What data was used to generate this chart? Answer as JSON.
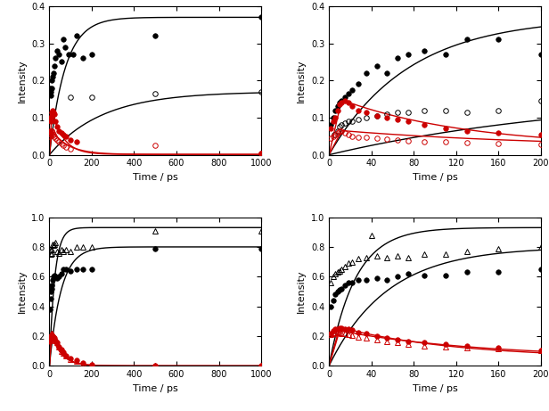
{
  "panels": [
    {
      "label": "top_left",
      "xlim": [
        0,
        1000
      ],
      "ylim": [
        0,
        0.4
      ],
      "xticks": [
        0,
        200,
        400,
        600,
        800,
        1000
      ],
      "yticks": [
        0.0,
        0.1,
        0.2,
        0.3,
        0.4
      ],
      "xlabel": "Time / ps",
      "ylabel": "Intensity",
      "black_filled_data": [
        [
          2,
          0.18
        ],
        [
          5,
          0.16
        ],
        [
          8,
          0.17
        ],
        [
          10,
          0.18
        ],
        [
          12,
          0.2
        ],
        [
          15,
          0.21
        ],
        [
          18,
          0.22
        ],
        [
          22,
          0.24
        ],
        [
          28,
          0.26
        ],
        [
          35,
          0.28
        ],
        [
          45,
          0.27
        ],
        [
          55,
          0.25
        ],
        [
          65,
          0.31
        ],
        [
          75,
          0.29
        ],
        [
          90,
          0.27
        ],
        [
          110,
          0.27
        ],
        [
          130,
          0.32
        ],
        [
          160,
          0.26
        ],
        [
          200,
          0.27
        ],
        [
          500,
          0.32
        ],
        [
          1000,
          0.37
        ]
      ],
      "black_open_data": [
        [
          100,
          0.155
        ],
        [
          200,
          0.155
        ],
        [
          500,
          0.165
        ],
        [
          1000,
          0.17
        ]
      ],
      "red_filled_data": [
        [
          2,
          0.065
        ],
        [
          5,
          0.09
        ],
        [
          8,
          0.1
        ],
        [
          10,
          0.105
        ],
        [
          12,
          0.115
        ],
        [
          15,
          0.12
        ],
        [
          18,
          0.115
        ],
        [
          22,
          0.11
        ],
        [
          28,
          0.09
        ],
        [
          35,
          0.075
        ],
        [
          45,
          0.065
        ],
        [
          55,
          0.06
        ],
        [
          65,
          0.055
        ],
        [
          80,
          0.05
        ],
        [
          100,
          0.04
        ],
        [
          130,
          0.035
        ],
        [
          1000,
          0.005
        ]
      ],
      "red_open_data": [
        [
          2,
          0.05
        ],
        [
          5,
          0.055
        ],
        [
          8,
          0.06
        ],
        [
          10,
          0.065
        ],
        [
          12,
          0.065
        ],
        [
          15,
          0.06
        ],
        [
          18,
          0.055
        ],
        [
          22,
          0.05
        ],
        [
          28,
          0.045
        ],
        [
          35,
          0.04
        ],
        [
          45,
          0.035
        ],
        [
          55,
          0.03
        ],
        [
          65,
          0.025
        ],
        [
          80,
          0.02
        ],
        [
          100,
          0.015
        ],
        [
          500,
          0.025
        ],
        [
          1000,
          0.005
        ]
      ],
      "bf_fit": {
        "a": 0.37,
        "tau": 75
      },
      "bo_fit": {
        "a": 0.17,
        "tau": 250
      },
      "rf_fit": {
        "peak": 0.12,
        "t_peak": 12,
        "tau_decay": 55,
        "c": 0.001
      },
      "ro_fit": {
        "peak": 0.065,
        "t_peak": 12,
        "tau_decay": 80,
        "c": 0.001
      }
    },
    {
      "label": "top_right",
      "xlim": [
        0,
        200
      ],
      "ylim": [
        0,
        0.4
      ],
      "xticks": [
        0,
        40,
        80,
        120,
        160,
        200
      ],
      "yticks": [
        0.0,
        0.1,
        0.2,
        0.3,
        0.4
      ],
      "xlabel": "Time / ps",
      "ylabel": "Intensity",
      "black_filled_data": [
        [
          2,
          0.08
        ],
        [
          4,
          0.1
        ],
        [
          6,
          0.12
        ],
        [
          8,
          0.13
        ],
        [
          10,
          0.14
        ],
        [
          12,
          0.145
        ],
        [
          15,
          0.155
        ],
        [
          18,
          0.165
        ],
        [
          22,
          0.175
        ],
        [
          28,
          0.19
        ],
        [
          35,
          0.22
        ],
        [
          45,
          0.24
        ],
        [
          55,
          0.22
        ],
        [
          65,
          0.26
        ],
        [
          75,
          0.27
        ],
        [
          90,
          0.28
        ],
        [
          110,
          0.27
        ],
        [
          130,
          0.31
        ],
        [
          160,
          0.31
        ],
        [
          200,
          0.27
        ]
      ],
      "black_open_data": [
        [
          5,
          0.055
        ],
        [
          8,
          0.065
        ],
        [
          10,
          0.075
        ],
        [
          12,
          0.08
        ],
        [
          15,
          0.085
        ],
        [
          18,
          0.09
        ],
        [
          22,
          0.09
        ],
        [
          28,
          0.095
        ],
        [
          35,
          0.1
        ],
        [
          45,
          0.105
        ],
        [
          55,
          0.11
        ],
        [
          65,
          0.115
        ],
        [
          75,
          0.115
        ],
        [
          90,
          0.12
        ],
        [
          110,
          0.12
        ],
        [
          130,
          0.115
        ],
        [
          160,
          0.12
        ],
        [
          200,
          0.145
        ]
      ],
      "red_filled_data": [
        [
          2,
          0.07
        ],
        [
          4,
          0.09
        ],
        [
          6,
          0.1
        ],
        [
          8,
          0.12
        ],
        [
          10,
          0.135
        ],
        [
          12,
          0.14
        ],
        [
          15,
          0.145
        ],
        [
          18,
          0.14
        ],
        [
          22,
          0.13
        ],
        [
          28,
          0.12
        ],
        [
          35,
          0.115
        ],
        [
          45,
          0.105
        ],
        [
          55,
          0.1
        ],
        [
          65,
          0.095
        ],
        [
          75,
          0.09
        ],
        [
          90,
          0.08
        ],
        [
          110,
          0.07
        ],
        [
          130,
          0.065
        ],
        [
          160,
          0.06
        ],
        [
          200,
          0.055
        ]
      ],
      "red_open_data": [
        [
          2,
          0.045
        ],
        [
          4,
          0.05
        ],
        [
          6,
          0.055
        ],
        [
          8,
          0.06
        ],
        [
          10,
          0.065
        ],
        [
          12,
          0.065
        ],
        [
          15,
          0.06
        ],
        [
          18,
          0.055
        ],
        [
          22,
          0.05
        ],
        [
          28,
          0.048
        ],
        [
          35,
          0.046
        ],
        [
          45,
          0.044
        ],
        [
          55,
          0.042
        ],
        [
          65,
          0.04
        ],
        [
          75,
          0.038
        ],
        [
          90,
          0.036
        ],
        [
          110,
          0.034
        ],
        [
          130,
          0.032
        ],
        [
          160,
          0.03
        ],
        [
          200,
          0.028
        ]
      ],
      "bf_fit": {
        "a": 0.37,
        "tau": 75
      },
      "bo_fit": {
        "a": 0.17,
        "tau": 250
      },
      "rf_fit": {
        "peak": 0.148,
        "t_peak": 12,
        "tau_decay": 120,
        "c": 0.02
      },
      "ro_fit": {
        "peak": 0.065,
        "t_peak": 12,
        "tau_decay": 200,
        "c": 0.018
      }
    },
    {
      "label": "bottom_left",
      "xlim": [
        0,
        1000
      ],
      "ylim": [
        0,
        1.0
      ],
      "xticks": [
        0,
        200,
        400,
        600,
        800,
        1000
      ],
      "yticks": [
        0.0,
        0.2,
        0.4,
        0.6,
        0.8,
        1.0
      ],
      "xlabel": "Time / ps",
      "ylabel": "Intensity",
      "black_tri_data": [
        [
          5,
          0.75
        ],
        [
          8,
          0.78
        ],
        [
          10,
          0.76
        ],
        [
          12,
          0.78
        ],
        [
          15,
          0.82
        ],
        [
          18,
          0.81
        ],
        [
          22,
          0.82
        ],
        [
          28,
          0.83
        ],
        [
          35,
          0.77
        ],
        [
          45,
          0.76
        ],
        [
          55,
          0.78
        ],
        [
          65,
          0.77
        ],
        [
          80,
          0.78
        ],
        [
          100,
          0.77
        ],
        [
          130,
          0.8
        ],
        [
          160,
          0.8
        ],
        [
          200,
          0.8
        ],
        [
          500,
          0.91
        ],
        [
          1000,
          0.91
        ]
      ],
      "black_filled_data": [
        [
          2,
          0.38
        ],
        [
          5,
          0.45
        ],
        [
          8,
          0.5
        ],
        [
          10,
          0.52
        ],
        [
          12,
          0.54
        ],
        [
          15,
          0.58
        ],
        [
          18,
          0.6
        ],
        [
          22,
          0.61
        ],
        [
          28,
          0.6
        ],
        [
          35,
          0.59
        ],
        [
          45,
          0.6
        ],
        [
          55,
          0.62
        ],
        [
          65,
          0.65
        ],
        [
          80,
          0.65
        ],
        [
          100,
          0.64
        ],
        [
          130,
          0.65
        ],
        [
          160,
          0.65
        ],
        [
          200,
          0.65
        ],
        [
          500,
          0.79
        ],
        [
          1000,
          0.79
        ]
      ],
      "red_filled_data": [
        [
          2,
          0.165
        ],
        [
          4,
          0.175
        ],
        [
          6,
          0.19
        ],
        [
          8,
          0.2
        ],
        [
          10,
          0.205
        ],
        [
          12,
          0.205
        ],
        [
          15,
          0.2
        ],
        [
          18,
          0.195
        ],
        [
          22,
          0.185
        ],
        [
          28,
          0.17
        ],
        [
          35,
          0.155
        ],
        [
          45,
          0.13
        ],
        [
          55,
          0.11
        ],
        [
          65,
          0.09
        ],
        [
          80,
          0.07
        ],
        [
          100,
          0.05
        ],
        [
          130,
          0.035
        ],
        [
          160,
          0.02
        ],
        [
          200,
          0.01
        ],
        [
          500,
          0.002
        ],
        [
          1000,
          0.0
        ]
      ],
      "red_tri_data": [
        [
          2,
          0.175
        ],
        [
          4,
          0.19
        ],
        [
          6,
          0.2
        ],
        [
          8,
          0.21
        ],
        [
          10,
          0.215
        ],
        [
          12,
          0.215
        ],
        [
          15,
          0.21
        ],
        [
          18,
          0.2
        ],
        [
          22,
          0.19
        ],
        [
          28,
          0.17
        ],
        [
          35,
          0.155
        ],
        [
          45,
          0.13
        ],
        [
          55,
          0.1
        ],
        [
          65,
          0.085
        ],
        [
          80,
          0.065
        ],
        [
          100,
          0.045
        ],
        [
          130,
          0.03
        ],
        [
          160,
          0.015
        ],
        [
          200,
          0.01
        ],
        [
          500,
          0.002
        ],
        [
          1000,
          0.0
        ]
      ],
      "bt_fit": {
        "a": 0.93,
        "tau": 25
      },
      "bf_fit": {
        "a": 0.8,
        "tau": 55
      },
      "rf_fit": {
        "peak": 0.21,
        "t_peak": 10,
        "tau_decay": 50,
        "c": 0.0
      },
      "rt_fit": {
        "peak": 0.215,
        "t_peak": 10,
        "tau_decay": 48,
        "c": 0.0
      }
    },
    {
      "label": "bottom_right",
      "xlim": [
        0,
        200
      ],
      "ylim": [
        0,
        1.0
      ],
      "xticks": [
        0,
        40,
        80,
        120,
        160,
        200
      ],
      "yticks": [
        0.0,
        0.2,
        0.4,
        0.6,
        0.8,
        1.0
      ],
      "xlabel": "Time / ps",
      "ylabel": "Intensity",
      "black_tri_data": [
        [
          2,
          0.56
        ],
        [
          4,
          0.6
        ],
        [
          6,
          0.62
        ],
        [
          8,
          0.63
        ],
        [
          10,
          0.64
        ],
        [
          12,
          0.65
        ],
        [
          15,
          0.67
        ],
        [
          18,
          0.69
        ],
        [
          22,
          0.7
        ],
        [
          28,
          0.72
        ],
        [
          35,
          0.73
        ],
        [
          45,
          0.74
        ],
        [
          55,
          0.73
        ],
        [
          65,
          0.74
        ],
        [
          75,
          0.73
        ],
        [
          90,
          0.75
        ],
        [
          110,
          0.75
        ],
        [
          130,
          0.77
        ],
        [
          160,
          0.79
        ],
        [
          200,
          0.8
        ],
        [
          40,
          0.88
        ]
      ],
      "black_filled_data": [
        [
          2,
          0.4
        ],
        [
          4,
          0.44
        ],
        [
          6,
          0.48
        ],
        [
          8,
          0.5
        ],
        [
          10,
          0.51
        ],
        [
          12,
          0.52
        ],
        [
          15,
          0.54
        ],
        [
          18,
          0.56
        ],
        [
          22,
          0.56
        ],
        [
          28,
          0.58
        ],
        [
          35,
          0.58
        ],
        [
          45,
          0.59
        ],
        [
          55,
          0.58
        ],
        [
          65,
          0.6
        ],
        [
          75,
          0.62
        ],
        [
          90,
          0.61
        ],
        [
          110,
          0.61
        ],
        [
          130,
          0.63
        ],
        [
          160,
          0.63
        ],
        [
          200,
          0.65
        ]
      ],
      "red_filled_data": [
        [
          2,
          0.22
        ],
        [
          4,
          0.235
        ],
        [
          6,
          0.245
        ],
        [
          8,
          0.25
        ],
        [
          10,
          0.255
        ],
        [
          12,
          0.255
        ],
        [
          15,
          0.25
        ],
        [
          18,
          0.245
        ],
        [
          22,
          0.24
        ],
        [
          28,
          0.225
        ],
        [
          35,
          0.215
        ],
        [
          45,
          0.2
        ],
        [
          55,
          0.19
        ],
        [
          65,
          0.175
        ],
        [
          75,
          0.165
        ],
        [
          90,
          0.155
        ],
        [
          110,
          0.145
        ],
        [
          130,
          0.135
        ],
        [
          160,
          0.12
        ],
        [
          200,
          0.105
        ]
      ],
      "red_tri_data": [
        [
          2,
          0.21
        ],
        [
          4,
          0.22
        ],
        [
          6,
          0.225
        ],
        [
          8,
          0.23
        ],
        [
          10,
          0.225
        ],
        [
          12,
          0.22
        ],
        [
          15,
          0.215
        ],
        [
          18,
          0.21
        ],
        [
          22,
          0.205
        ],
        [
          28,
          0.195
        ],
        [
          35,
          0.185
        ],
        [
          45,
          0.175
        ],
        [
          55,
          0.165
        ],
        [
          65,
          0.155
        ],
        [
          75,
          0.145
        ],
        [
          90,
          0.135
        ],
        [
          110,
          0.13
        ],
        [
          130,
          0.12
        ],
        [
          160,
          0.115
        ],
        [
          200,
          0.105
        ]
      ],
      "bt_fit": {
        "a": 0.93,
        "tau": 25
      },
      "bf_fit": {
        "a": 0.8,
        "tau": 55
      },
      "rf_fit": {
        "peak": 0.26,
        "t_peak": 10,
        "tau_decay": 110,
        "c": 0.05
      },
      "rt_fit": {
        "peak": 0.235,
        "t_peak": 10,
        "tau_decay": 140,
        "c": 0.05
      }
    }
  ],
  "black_color": "#000000",
  "red_color": "#cc0000",
  "marker_size": 4,
  "line_width": 1.0,
  "font_size": 8
}
